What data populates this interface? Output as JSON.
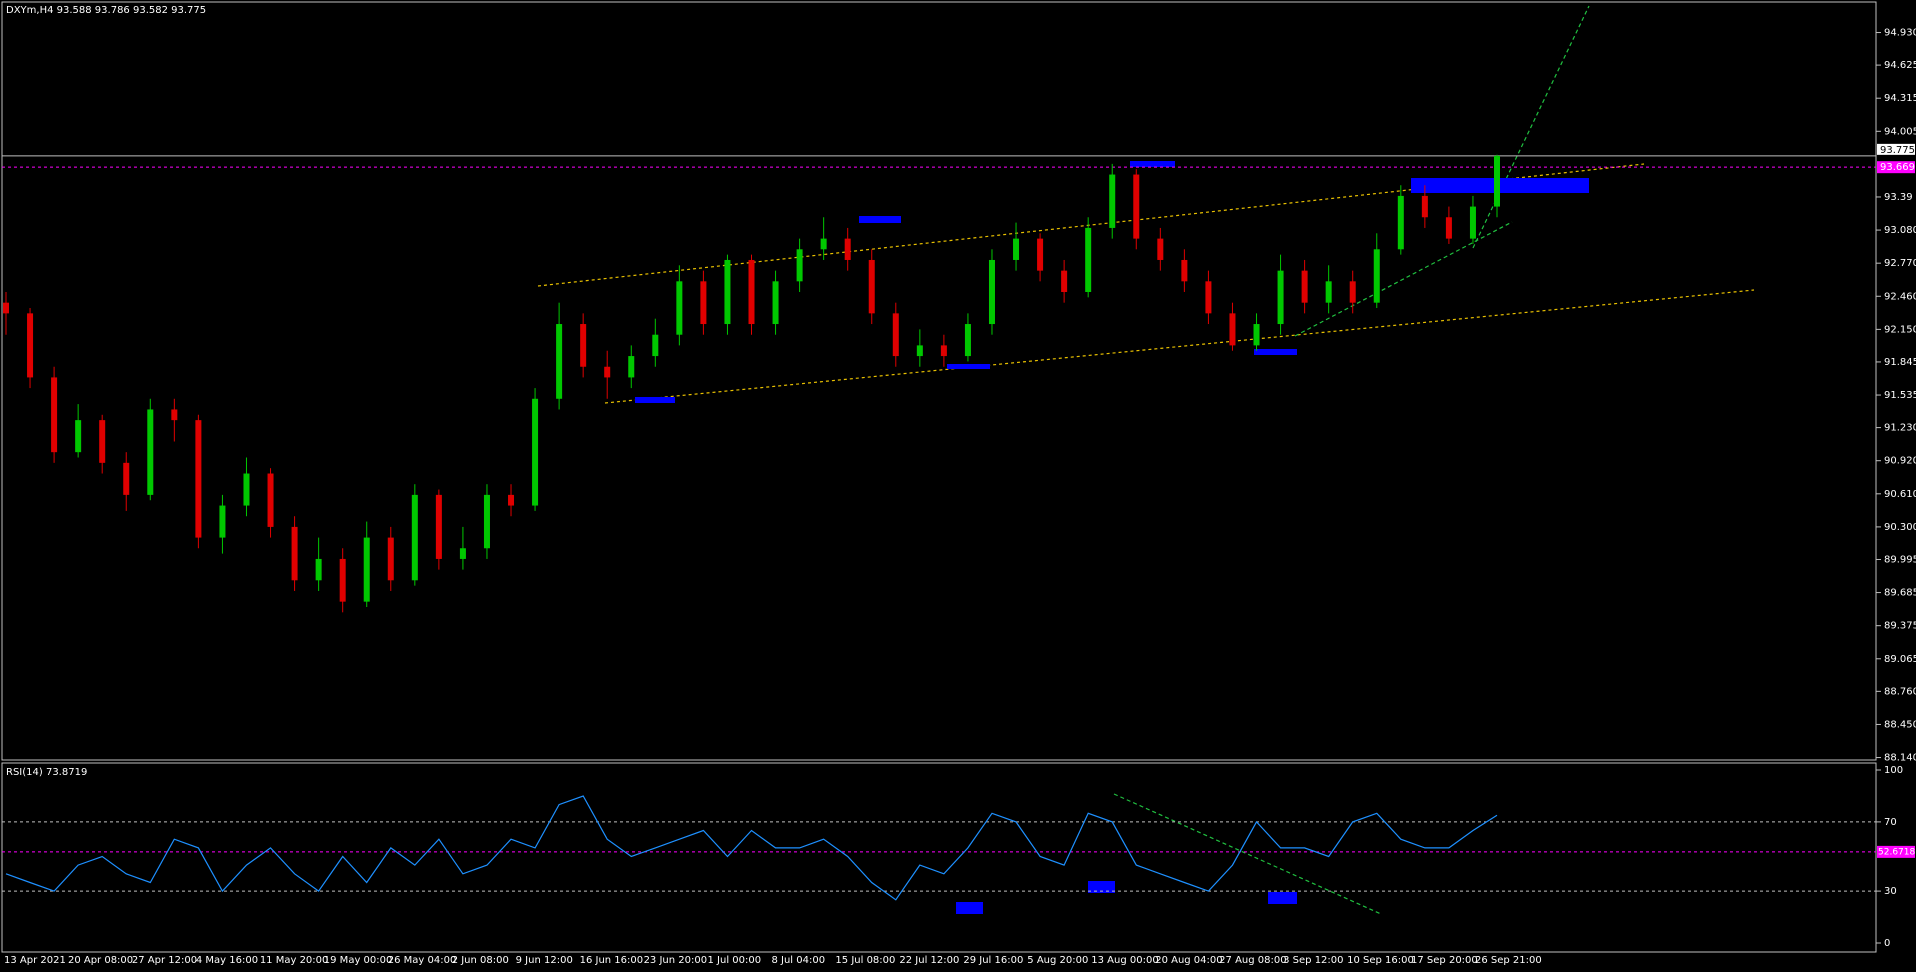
{
  "chart_data": [
    {
      "type": "candlestick",
      "title": "DXYm,H4  93.588 93.786 93.582 93.775",
      "open": [
        92.4,
        92.3,
        91.7,
        91.0,
        91.3,
        90.9,
        90.6,
        91.4,
        91.3,
        90.2,
        90.5,
        90.8,
        90.3,
        89.8,
        90.0,
        89.6,
        90.2,
        89.8,
        90.6,
        90.0,
        90.1,
        90.6,
        90.5,
        91.5,
        92.2,
        91.8,
        91.7,
        91.9,
        92.1,
        92.6,
        92.2,
        92.8,
        92.2,
        92.6,
        92.9,
        93.0,
        92.8,
        92.3,
        91.9,
        92.0,
        91.9,
        92.2,
        92.8,
        93.0,
        92.7,
        92.5,
        93.1,
        93.6,
        93.0,
        92.8,
        92.6,
        92.3,
        92.0,
        92.2,
        92.7,
        92.4,
        92.6,
        92.4,
        92.9,
        93.4,
        93.2,
        93.0,
        93.3
      ],
      "high": [
        92.5,
        92.35,
        91.8,
        91.45,
        91.35,
        91.0,
        91.5,
        91.5,
        91.35,
        90.6,
        90.95,
        90.85,
        90.4,
        90.2,
        90.1,
        90.35,
        90.3,
        90.7,
        90.65,
        90.3,
        90.7,
        90.7,
        91.6,
        92.4,
        92.3,
        91.95,
        92.0,
        92.25,
        92.75,
        92.7,
        92.85,
        92.85,
        92.7,
        93.0,
        93.2,
        93.1,
        92.9,
        92.4,
        92.15,
        92.1,
        92.3,
        92.9,
        93.15,
        93.05,
        92.8,
        93.2,
        93.7,
        93.65,
        93.1,
        92.9,
        92.7,
        92.4,
        92.3,
        92.85,
        92.8,
        92.75,
        92.7,
        93.05,
        93.5,
        93.5,
        93.3,
        93.4,
        93.786
      ],
      "low": [
        92.1,
        91.6,
        90.9,
        90.95,
        90.8,
        90.45,
        90.55,
        91.1,
        90.1,
        90.05,
        90.4,
        90.2,
        89.7,
        89.7,
        89.5,
        89.55,
        89.7,
        89.75,
        89.9,
        89.9,
        90.0,
        90.4,
        90.45,
        91.4,
        91.7,
        91.5,
        91.6,
        91.8,
        92.0,
        92.1,
        92.1,
        92.1,
        92.1,
        92.5,
        92.8,
        92.7,
        92.2,
        91.8,
        91.8,
        91.8,
        91.85,
        92.1,
        92.7,
        92.6,
        92.4,
        92.45,
        93.0,
        92.9,
        92.7,
        92.5,
        92.2,
        91.95,
        91.95,
        92.1,
        92.3,
        92.3,
        92.3,
        92.35,
        92.85,
        93.1,
        92.95,
        92.95,
        93.2
      ],
      "close": [
        92.3,
        91.7,
        91.0,
        91.3,
        90.9,
        90.6,
        91.4,
        91.3,
        90.2,
        90.5,
        90.8,
        90.3,
        89.8,
        90.0,
        89.6,
        90.2,
        89.8,
        90.6,
        90.0,
        90.1,
        90.6,
        90.5,
        91.5,
        92.2,
        91.8,
        91.7,
        91.9,
        92.1,
        92.6,
        92.2,
        92.8,
        92.2,
        92.6,
        92.9,
        93.0,
        92.8,
        92.3,
        91.9,
        92.0,
        91.9,
        92.2,
        92.8,
        93.0,
        92.7,
        92.5,
        93.1,
        93.6,
        93.0,
        92.8,
        92.6,
        92.3,
        92.0,
        92.2,
        92.7,
        92.4,
        92.6,
        92.4,
        92.9,
        93.4,
        93.2,
        93.0,
        93.3,
        93.775
      ],
      "up_color": "#00c800",
      "down_color": "#e00000",
      "ylim": [
        88.117,
        95.216
      ],
      "yticks": [
        {
          "value": 94.93,
          "label": "94.930"
        },
        94.625,
        94.315,
        94.005,
        93.39,
        {
          "value": 93.08,
          "label": "93.080"
        },
        {
          "value": 92.77,
          "label": "92.770"
        },
        {
          "value": 92.46,
          "label": "92.460"
        },
        {
          "value": 92.15,
          "label": "92.150"
        },
        91.845,
        91.535,
        {
          "value": 91.23,
          "label": "91.230"
        },
        {
          "value": 90.92,
          "label": "90.920"
        },
        {
          "value": 90.61,
          "label": "90.610"
        },
        {
          "value": 90.3,
          "label": "90.300"
        },
        89.995,
        89.685,
        89.375,
        89.065,
        {
          "value": 88.76,
          "label": "88.760"
        },
        {
          "value": 88.45,
          "label": "88.450"
        },
        {
          "value": 88.14,
          "label": "88.140"
        }
      ],
      "price_line": 93.775,
      "level_line": 93.669,
      "date_labels": [
        "13 Apr 2021",
        "20 Apr 08:00",
        "27 Apr 12:00",
        "4 May 16:00",
        "11 May 20:00",
        "19 May 00:00",
        "26 May 04:00",
        "2 Jun 08:00",
        "9 Jun 12:00",
        "16 Jun 16:00",
        "23 Jun 20:00",
        "1 Jul 00:00",
        "8 Jul 04:00",
        "15 Jul 08:00",
        "22 Jul 12:00",
        "29 Jul 16:00",
        "5 Aug 20:00",
        "13 Aug 00:00",
        "20 Aug 04:00",
        "27 Aug 08:00",
        "3 Sep 12:00",
        "10 Sep 16:00",
        "17 Sep 20:00",
        "26 Sep 21:00"
      ]
    },
    {
      "type": "line",
      "title": "RSI(14) 73.8719",
      "color": "#1e90ff",
      "values": [
        40,
        35,
        30,
        45,
        50,
        40,
        35,
        60,
        55,
        30,
        45,
        55,
        40,
        30,
        50,
        35,
        55,
        45,
        60,
        40,
        45,
        60,
        55,
        80,
        85,
        60,
        50,
        55,
        60,
        65,
        50,
        65,
        55,
        55,
        60,
        50,
        35,
        25,
        45,
        40,
        55,
        75,
        70,
        50,
        45,
        75,
        70,
        45,
        40,
        35,
        30,
        45,
        70,
        55,
        55,
        50,
        70,
        75,
        60,
        55,
        55,
        65,
        73.87
      ],
      "ylim": [
        0,
        100
      ],
      "yticks": [
        0,
        30,
        70,
        100
      ],
      "level": 52.6718
    }
  ]
}
